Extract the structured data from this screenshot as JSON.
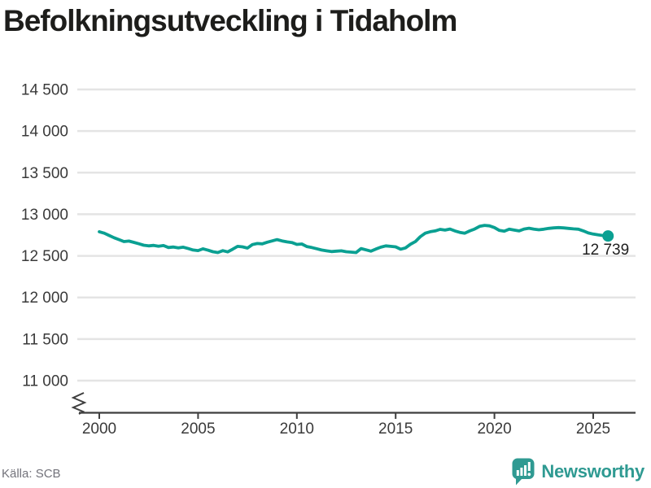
{
  "page": {
    "title": "Befolkningsutveckling i Tidaholm"
  },
  "chart_data": {
    "type": "line",
    "title": "Befolkningsutveckling i Tidaholm",
    "xlabel": "",
    "ylabel": "",
    "grid": "horizontal",
    "legend": "none",
    "axis_break_bottom": true,
    "ylim": [
      11000,
      14500
    ],
    "xlim": [
      1999,
      2027.2
    ],
    "y_ticks": {
      "values": [
        11000,
        11500,
        12000,
        12500,
        13000,
        13500,
        14000,
        14500
      ],
      "labels": [
        "11 000",
        "11 500",
        "12 000",
        "12 500",
        "13 000",
        "13 500",
        "14 000",
        "14 500"
      ]
    },
    "x_ticks": {
      "values": [
        2000,
        2005,
        2010,
        2015,
        2020,
        2025
      ],
      "labels": [
        "2000",
        "2005",
        "2010",
        "2015",
        "2020",
        "2025"
      ]
    },
    "end_label": "12 739",
    "colors": {
      "line": "#0aa092",
      "marker": "#0aa092",
      "grid": "#e4e4e4",
      "axis": "#3f3f3f",
      "tick_text": "#3a3a3a",
      "annotation": "#1f1f1f",
      "title": "#1d1d1b",
      "source_text": "#73737b",
      "brand": "#2f9a92"
    },
    "points": [
      [
        2000.0,
        12790
      ],
      [
        2000.25,
        12772
      ],
      [
        2000.5,
        12745
      ],
      [
        2000.75,
        12718
      ],
      [
        2001.0,
        12695
      ],
      [
        2001.25,
        12672
      ],
      [
        2001.5,
        12678
      ],
      [
        2001.75,
        12662
      ],
      [
        2002.0,
        12645
      ],
      [
        2002.25,
        12628
      ],
      [
        2002.5,
        12620
      ],
      [
        2002.75,
        12626
      ],
      [
        2003.0,
        12616
      ],
      [
        2003.25,
        12624
      ],
      [
        2003.5,
        12600
      ],
      [
        2003.75,
        12606
      ],
      [
        2004.0,
        12596
      ],
      [
        2004.25,
        12604
      ],
      [
        2004.5,
        12588
      ],
      [
        2004.75,
        12570
      ],
      [
        2005.0,
        12563
      ],
      [
        2005.25,
        12585
      ],
      [
        2005.5,
        12568
      ],
      [
        2005.75,
        12550
      ],
      [
        2006.0,
        12540
      ],
      [
        2006.25,
        12562
      ],
      [
        2006.5,
        12548
      ],
      [
        2006.75,
        12580
      ],
      [
        2007.0,
        12614
      ],
      [
        2007.25,
        12608
      ],
      [
        2007.5,
        12594
      ],
      [
        2007.75,
        12636
      ],
      [
        2008.0,
        12648
      ],
      [
        2008.25,
        12644
      ],
      [
        2008.5,
        12664
      ],
      [
        2008.75,
        12680
      ],
      [
        2009.0,
        12695
      ],
      [
        2009.25,
        12680
      ],
      [
        2009.5,
        12668
      ],
      [
        2009.75,
        12660
      ],
      [
        2010.0,
        12638
      ],
      [
        2010.25,
        12642
      ],
      [
        2010.5,
        12612
      ],
      [
        2010.75,
        12600
      ],
      [
        2011.0,
        12586
      ],
      [
        2011.25,
        12570
      ],
      [
        2011.5,
        12560
      ],
      [
        2011.75,
        12552
      ],
      [
        2012.0,
        12556
      ],
      [
        2012.25,
        12560
      ],
      [
        2012.5,
        12550
      ],
      [
        2012.75,
        12545
      ],
      [
        2013.0,
        12540
      ],
      [
        2013.25,
        12588
      ],
      [
        2013.5,
        12572
      ],
      [
        2013.75,
        12556
      ],
      [
        2014.0,
        12582
      ],
      [
        2014.25,
        12604
      ],
      [
        2014.5,
        12620
      ],
      [
        2014.75,
        12614
      ],
      [
        2015.0,
        12608
      ],
      [
        2015.25,
        12580
      ],
      [
        2015.5,
        12596
      ],
      [
        2015.75,
        12640
      ],
      [
        2016.0,
        12672
      ],
      [
        2016.25,
        12730
      ],
      [
        2016.5,
        12772
      ],
      [
        2016.75,
        12790
      ],
      [
        2017.0,
        12800
      ],
      [
        2017.25,
        12818
      ],
      [
        2017.5,
        12810
      ],
      [
        2017.75,
        12822
      ],
      [
        2018.0,
        12800
      ],
      [
        2018.25,
        12782
      ],
      [
        2018.5,
        12772
      ],
      [
        2018.75,
        12800
      ],
      [
        2019.0,
        12822
      ],
      [
        2019.25,
        12855
      ],
      [
        2019.5,
        12866
      ],
      [
        2019.75,
        12860
      ],
      [
        2020.0,
        12840
      ],
      [
        2020.25,
        12806
      ],
      [
        2020.5,
        12796
      ],
      [
        2020.75,
        12820
      ],
      [
        2021.0,
        12810
      ],
      [
        2021.25,
        12800
      ],
      [
        2021.5,
        12822
      ],
      [
        2021.75,
        12832
      ],
      [
        2022.0,
        12820
      ],
      [
        2022.25,
        12814
      ],
      [
        2022.5,
        12820
      ],
      [
        2022.75,
        12830
      ],
      [
        2023.0,
        12836
      ],
      [
        2023.25,
        12840
      ],
      [
        2023.5,
        12836
      ],
      [
        2023.75,
        12830
      ],
      [
        2024.0,
        12824
      ],
      [
        2024.25,
        12820
      ],
      [
        2024.5,
        12800
      ],
      [
        2024.75,
        12775
      ],
      [
        2025.0,
        12762
      ],
      [
        2025.25,
        12752
      ],
      [
        2025.5,
        12744
      ],
      [
        2025.75,
        12739
      ]
    ]
  },
  "footer": {
    "source": "Källa: SCB",
    "brand": "Newsworthy",
    "logo_icon": "newsworthy-bubble-bar-chart-icon"
  }
}
